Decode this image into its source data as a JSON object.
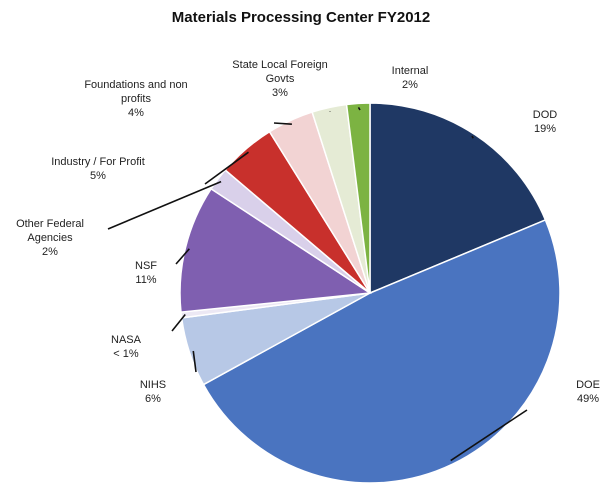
{
  "chart_data": {
    "type": "pie",
    "title": "Materials Processing Center FY2012",
    "slices": [
      {
        "label": "DOD",
        "value": 19,
        "percent_label": "19%",
        "color": "#1f3864"
      },
      {
        "label": "DOE",
        "value": 49,
        "percent_label": "49%",
        "color": "#4a74c0"
      },
      {
        "label": "NIHS",
        "value": 6,
        "percent_label": "6%",
        "color": "#b7c8e6"
      },
      {
        "label": "NASA",
        "value": 0.5,
        "percent_label": "< 1%",
        "color": "#ece8f4"
      },
      {
        "label": "NSF",
        "value": 11,
        "percent_label": "11%",
        "color": "#7f5fb0"
      },
      {
        "label": "Other Federal Agencies",
        "value": 2,
        "percent_label": "2%",
        "color": "#d9d0ea"
      },
      {
        "label": "Industry / For Profit",
        "value": 5,
        "percent_label": "5%",
        "color": "#c8302c"
      },
      {
        "label": "Foundations and non profits",
        "value": 4,
        "percent_label": "4%",
        "color": "#f2d3d3"
      },
      {
        "label": "State Local Foreign Govts",
        "value": 3,
        "percent_label": "3%",
        "color": "#e5ebd5"
      },
      {
        "label": "Internal",
        "value": 2,
        "percent_label": "2%",
        "color": "#7cb342"
      }
    ]
  }
}
